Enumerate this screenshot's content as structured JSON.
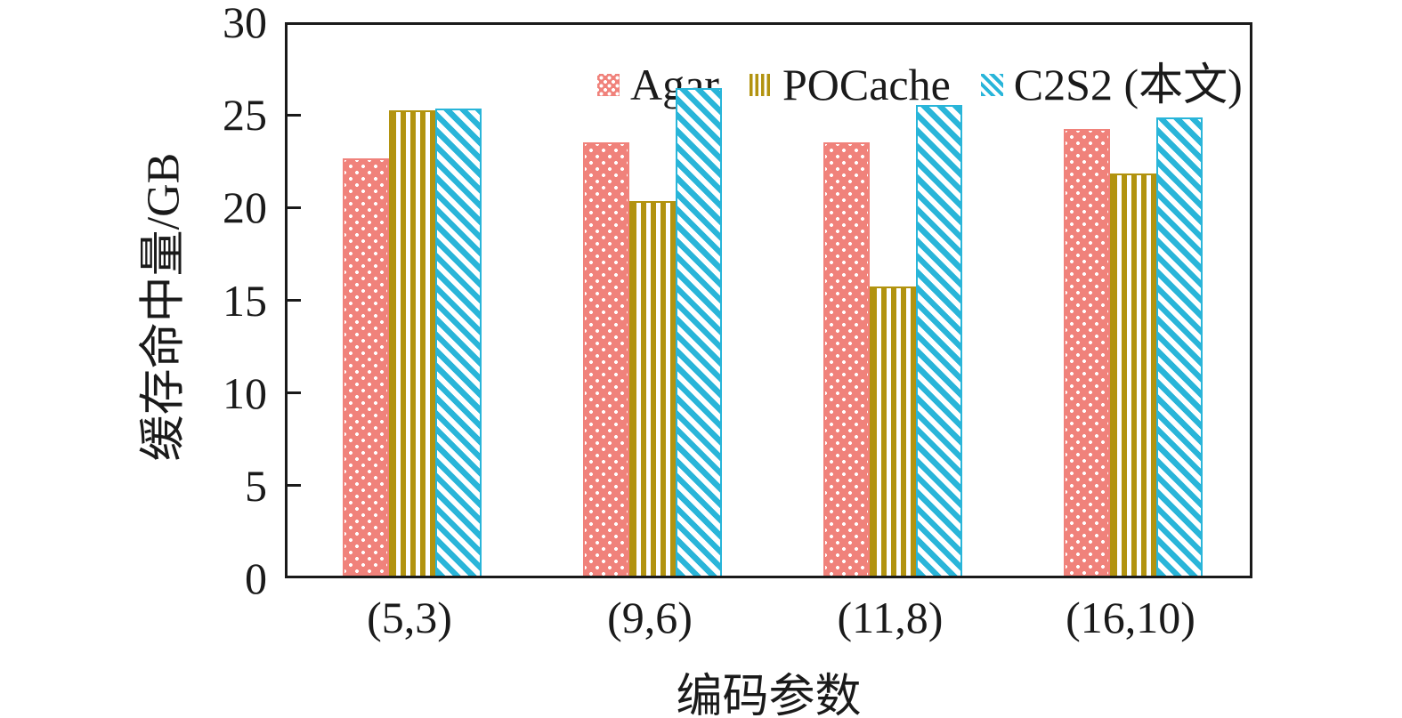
{
  "figure": {
    "background": "#ffffff",
    "text_color": "#1a1a1a"
  },
  "chart_data": {
    "type": "bar",
    "title": "",
    "xlabel": "编码参数",
    "ylabel": "缓存命中量/GB",
    "categories": [
      "(5,3)",
      "(9,6)",
      "(11,8)",
      "(16,10)"
    ],
    "series": [
      {
        "name": "Agar",
        "color": "#f0827b",
        "pattern": "dots",
        "values": [
          22.5,
          23.4,
          23.4,
          24.1
        ]
      },
      {
        "name": "POCache",
        "color": "#b29310",
        "pattern": "vstripes",
        "values": [
          25.1,
          20.2,
          15.6,
          21.7
        ]
      },
      {
        "name": "C2S2 (本文)",
        "color": "#29b5d9",
        "pattern": "diag",
        "values": [
          25.2,
          26.3,
          25.4,
          24.7
        ]
      }
    ],
    "ylim": [
      0,
      30
    ],
    "yticks": [
      0,
      5,
      10,
      15,
      20,
      25,
      30
    ],
    "grid": false,
    "legend_position": "top-left-inside"
  }
}
